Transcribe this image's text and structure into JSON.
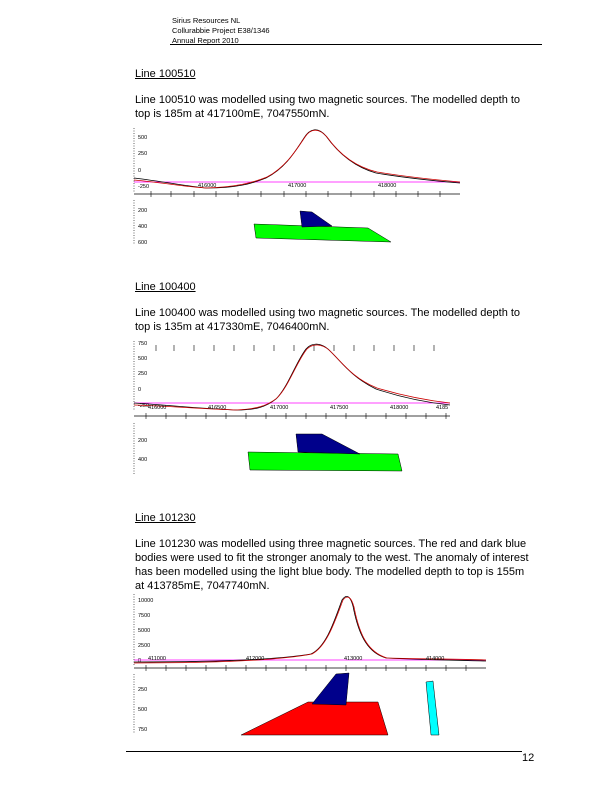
{
  "header": {
    "company": "Sirius Resources NL",
    "project": "Collurabbie Project E38/1346",
    "report": "Annual Report 2010"
  },
  "sections": [
    {
      "heading": "Line 100510",
      "text": "Line 100510 was modelled using two magnetic sources. The modelled depth to top is 185m at 417100mE, 7047550mN.",
      "figure": {
        "profile_labels": [
          "500",
          "250",
          "0",
          "-250"
        ],
        "easting_labels": [
          "416000",
          "417000",
          "418000"
        ],
        "depth_labels": [
          "200",
          "400",
          "600"
        ],
        "bodies": [
          {
            "color": "#00ff00",
            "name": "green body"
          },
          {
            "color": "#00008b",
            "name": "dark blue body"
          }
        ]
      }
    },
    {
      "heading": "Line 100400",
      "text": "Line 100400 was modelled using two magnetic sources. The modelled depth to top is 135m at 417330mE, 7046400mN.",
      "figure": {
        "profile_labels": [
          "750",
          "500",
          "250",
          "0",
          "-250"
        ],
        "easting_labels": [
          "416000",
          "416500",
          "417000",
          "417500",
          "418000",
          "4185"
        ],
        "depth_labels": [
          "200",
          "400"
        ],
        "bodies": [
          {
            "color": "#00ff00",
            "name": "green body"
          },
          {
            "color": "#00008b",
            "name": "dark blue body"
          }
        ]
      }
    },
    {
      "heading": "Line 101230",
      "text": "Line 101230 was modelled using three magnetic sources. The red and dark blue bodies were used to fit the stronger anomaly to the west. The anomaly of interest has been modelled using the light blue body. The modelled depth to top is 155m at 413785mE, 7047740mN.",
      "figure": {
        "profile_labels": [
          "10000",
          "7500",
          "5000",
          "2500",
          "0"
        ],
        "easting_labels": [
          "411000",
          "412000",
          "413000",
          "414000"
        ],
        "depth_labels": [
          "250",
          "500",
          "750"
        ],
        "bodies": [
          {
            "color": "#ff0000",
            "name": "red body"
          },
          {
            "color": "#00008b",
            "name": "dark blue body"
          },
          {
            "color": "#00ffff",
            "name": "light blue body"
          }
        ]
      }
    }
  ],
  "colors": {
    "observed_curve": "#000000",
    "calculated_curve": "#cc0000",
    "regional_line": "#ff00ff"
  },
  "footer": {
    "page_number": "12"
  }
}
